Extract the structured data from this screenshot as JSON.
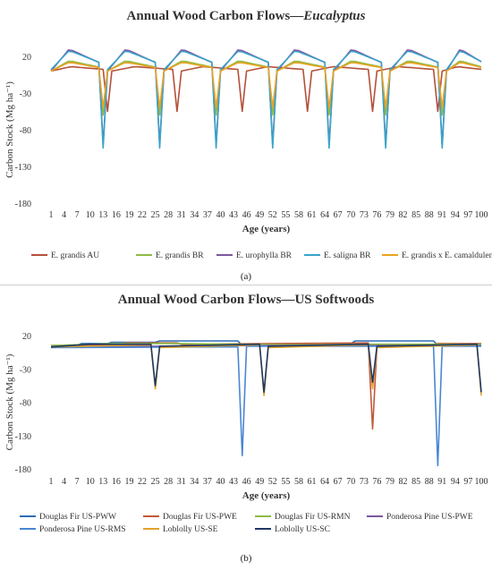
{
  "panels": [
    {
      "caption": "(a)",
      "chart_data": {
        "type": "line",
        "title": "Annual Wood Carbon Flows—",
        "title_italic": "Eucalyptus",
        "xlabel": "Age (years)",
        "ylabel": "Carbon Stock (Mg ha⁻¹)",
        "ylim": [
          -180,
          20
        ],
        "yticks": [
          20,
          -30,
          -80,
          -130,
          -180
        ],
        "xlim": [
          1,
          100
        ],
        "xticks": [
          1,
          4,
          7,
          10,
          13,
          16,
          19,
          22,
          25,
          28,
          31,
          34,
          37,
          40,
          43,
          46,
          49,
          52,
          55,
          58,
          61,
          64,
          67,
          70,
          73,
          76,
          79,
          82,
          85,
          88,
          91,
          94,
          97,
          100
        ],
        "grid": false,
        "legend_position": "bottom",
        "series": [
          {
            "name": "E. grandis AU",
            "color": "#b5503a",
            "harvest_ages": [
              14,
              30,
              45,
              60,
              75,
              90
            ],
            "peak": 6,
            "harvest_value": -55,
            "base": 0
          },
          {
            "name": "E. grandis BR",
            "color": "#8dbb45",
            "harvest_ages": [
              13,
              26,
              39,
              52,
              65,
              78,
              91
            ],
            "peak": 14,
            "harvest_value": -60,
            "base": 0
          },
          {
            "name": "E. urophylla BR",
            "color": "#7e579d",
            "harvest_ages": [
              13,
              26,
              39,
              52,
              65,
              78,
              91
            ],
            "peak": 30,
            "harvest_value": -100,
            "base": 0
          },
          {
            "name": "E. saligna BR",
            "color": "#3aa3c9",
            "harvest_ages": [
              13,
              26,
              39,
              52,
              65,
              78,
              91
            ],
            "peak": 28,
            "harvest_value": -105,
            "base": 2
          },
          {
            "name": "E. grandis x E. camaldulensis BR",
            "color": "#eba321",
            "harvest_ages": [
              13,
              26,
              39,
              52,
              65,
              78,
              91
            ],
            "peak": 12,
            "harvest_value": -50,
            "base": 0
          }
        ]
      }
    },
    {
      "caption": "(b)",
      "chart_data": {
        "type": "line",
        "title": "Annual Wood Carbon Flows—US Softwoods",
        "xlabel": "Age (years)",
        "ylabel": "Carbon Stock (Mg ha⁻¹)",
        "ylim": [
          -180,
          20
        ],
        "yticks": [
          20,
          -30,
          -80,
          -130,
          -180
        ],
        "xlim": [
          1,
          100
        ],
        "xticks": [
          1,
          4,
          7,
          10,
          13,
          16,
          19,
          22,
          25,
          28,
          31,
          34,
          37,
          40,
          43,
          46,
          49,
          52,
          55,
          58,
          61,
          64,
          67,
          70,
          73,
          76,
          79,
          82,
          85,
          88,
          91,
          94,
          97,
          100
        ],
        "grid": false,
        "legend_position": "bottom",
        "series": [
          {
            "name": "Douglas Fir US-PWW",
            "color": "#2e6eb5",
            "points": [
              [
                1,
                5
              ],
              [
                7,
                5
              ],
              [
                8,
                8
              ],
              [
                14,
                8
              ],
              [
                15,
                10
              ],
              [
                25,
                10
              ],
              [
                26,
                12
              ],
              [
                44,
                12
              ],
              [
                45,
                5
              ],
              [
                70,
                8
              ],
              [
                71,
                12
              ],
              [
                89,
                12
              ],
              [
                90,
                5
              ],
              [
                100,
                5
              ]
            ]
          },
          {
            "name": "Douglas Fir US-PWE",
            "color": "#c25a3a",
            "points": [
              [
                1,
                5
              ],
              [
                17,
                5
              ],
              [
                18,
                9
              ],
              [
                30,
                9
              ],
              [
                31,
                7
              ],
              [
                74,
                9
              ],
              [
                75,
                -120
              ],
              [
                76,
                4
              ],
              [
                89,
                6
              ],
              [
                90,
                8
              ],
              [
                100,
                8
              ]
            ]
          },
          {
            "name": "Douglas Fir US-RMN",
            "color": "#8dbb45",
            "points": [
              [
                1,
                5
              ],
              [
                15,
                8
              ],
              [
                30,
                8
              ],
              [
                45,
                7
              ],
              [
                60,
                6
              ],
              [
                75,
                7
              ],
              [
                100,
                7
              ]
            ]
          },
          {
            "name": "Ponderosa Pine US-PWE",
            "color": "#7e579d",
            "points": [
              [
                1,
                3
              ],
              [
                25,
                4
              ],
              [
                50,
                5
              ],
              [
                75,
                5
              ],
              [
                100,
                5
              ]
            ]
          },
          {
            "name": "Ponderosa Pine US-RMS",
            "color": "#4a86d4",
            "points": [
              [
                1,
                2
              ],
              [
                44,
                3
              ],
              [
                45,
                -160
              ],
              [
                46,
                4
              ],
              [
                89,
                4
              ],
              [
                90,
                -175
              ],
              [
                91,
                4
              ],
              [
                100,
                4
              ]
            ]
          },
          {
            "name": "Loblolly US-SE",
            "color": "#e3a32b",
            "points": [
              [
                1,
                3
              ],
              [
                24,
                6
              ],
              [
                25,
                -60
              ],
              [
                26,
                2
              ],
              [
                49,
                6
              ],
              [
                50,
                -70
              ],
              [
                51,
                2
              ],
              [
                74,
                6
              ],
              [
                75,
                -60
              ],
              [
                76,
                2
              ],
              [
                99,
                6
              ],
              [
                100,
                -70
              ]
            ]
          },
          {
            "name": "Loblolly US-SC",
            "color": "#1f3864",
            "points": [
              [
                1,
                3
              ],
              [
                10,
                7
              ],
              [
                24,
                7
              ],
              [
                25,
                -55
              ],
              [
                26,
                4
              ],
              [
                49,
                7
              ],
              [
                50,
                -65
              ],
              [
                51,
                4
              ],
              [
                74,
                7
              ],
              [
                75,
                -50
              ],
              [
                76,
                4
              ],
              [
                99,
                7
              ],
              [
                100,
                -65
              ]
            ]
          }
        ]
      }
    }
  ]
}
